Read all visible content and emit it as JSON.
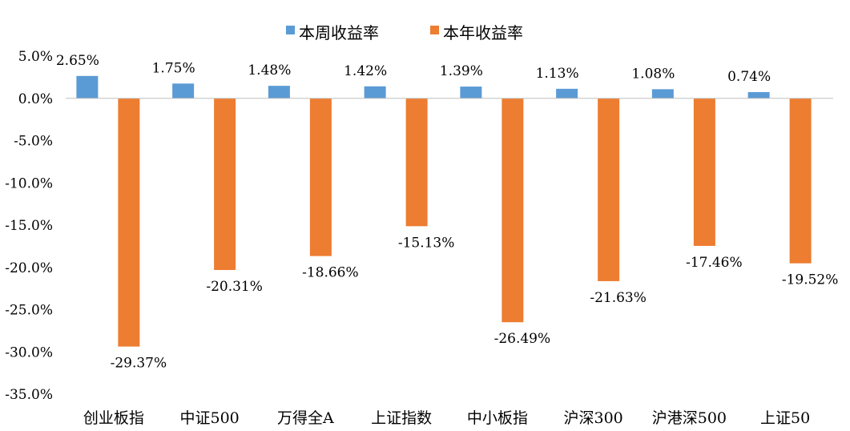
{
  "chart_data": {
    "type": "bar",
    "categories": [
      "创业板指",
      "中证500",
      "万得全A",
      "上证指数",
      "中小板指",
      "沪深300",
      "沪港深500",
      "上证50"
    ],
    "series": [
      {
        "name": "本周收益率",
        "values": [
          2.65,
          1.75,
          1.48,
          1.42,
          1.39,
          1.13,
          1.08,
          0.74
        ],
        "labels": [
          "2.65%",
          "1.75%",
          "1.48%",
          "1.42%",
          "1.39%",
          "1.13%",
          "1.08%",
          "0.74%"
        ],
        "color": "#5B9BD5"
      },
      {
        "name": "本年收益率",
        "values": [
          -29.37,
          -20.31,
          -18.66,
          -15.13,
          -26.49,
          -21.63,
          -17.46,
          -19.52
        ],
        "labels": [
          "-29.37%",
          "-20.31%",
          "-18.66%",
          "-15.13%",
          "-26.49%",
          "-21.63%",
          "-17.46%",
          "-19.52%"
        ],
        "color": "#ED7D31"
      }
    ],
    "ylim": [
      -35,
      5
    ],
    "yticks": [
      "5.0%",
      "0.0%",
      "-5.0%",
      "-10.0%",
      "-15.0%",
      "-20.0%",
      "-25.0%",
      "-30.0%",
      "-35.0%"
    ],
    "grid": false,
    "legend": "top-center"
  }
}
